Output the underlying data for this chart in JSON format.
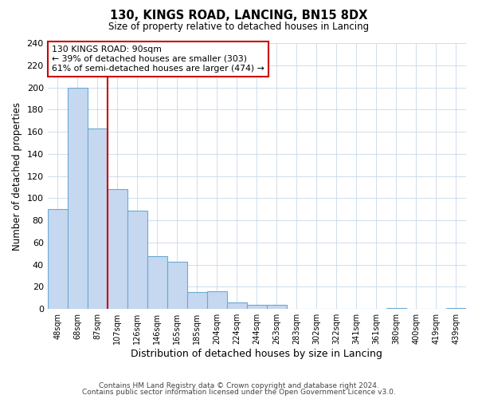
{
  "title": "130, KINGS ROAD, LANCING, BN15 8DX",
  "subtitle": "Size of property relative to detached houses in Lancing",
  "xlabel": "Distribution of detached houses by size in Lancing",
  "ylabel": "Number of detached properties",
  "bar_labels": [
    "48sqm",
    "68sqm",
    "87sqm",
    "107sqm",
    "126sqm",
    "146sqm",
    "165sqm",
    "185sqm",
    "204sqm",
    "224sqm",
    "244sqm",
    "263sqm",
    "283sqm",
    "302sqm",
    "322sqm",
    "341sqm",
    "361sqm",
    "380sqm",
    "400sqm",
    "419sqm",
    "439sqm"
  ],
  "bar_values": [
    90,
    200,
    163,
    108,
    89,
    48,
    43,
    15,
    16,
    6,
    4,
    4,
    0,
    0,
    0,
    0,
    0,
    1,
    0,
    0,
    1
  ],
  "bar_color": "#c5d8f0",
  "bar_edge_color": "#6aaad4",
  "vline_color": "#cc0000",
  "ylim": [
    0,
    240
  ],
  "yticks": [
    0,
    20,
    40,
    60,
    80,
    100,
    120,
    140,
    160,
    180,
    200,
    220,
    240
  ],
  "annotation_title": "130 KINGS ROAD: 90sqm",
  "annotation_line1": "← 39% of detached houses are smaller (303)",
  "annotation_line2": "61% of semi-detached houses are larger (474) →",
  "annotation_box_color": "#ffffff",
  "annotation_box_edge": "#cc0000",
  "footer1": "Contains HM Land Registry data © Crown copyright and database right 2024.",
  "footer2": "Contains public sector information licensed under the Open Government Licence v3.0.",
  "background_color": "#ffffff",
  "grid_color": "#c8d8e8"
}
